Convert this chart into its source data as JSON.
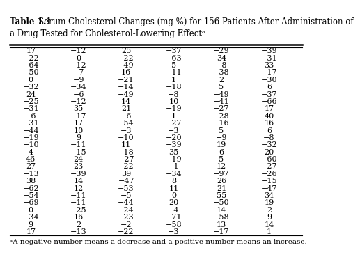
{
  "title_bold": "Table 1.1",
  "title_line1": "  Serum Cholesterol Changes (mg %) for 156 Patients After Administration of",
  "title_line2": "a Drug Tested for Cholesterol-Lowering Effectᵃ",
  "footnote": "ᵃA negative number means a decrease and a positive number means an increase.",
  "columns": 6,
  "rows": [
    [
      17,
      -12,
      25,
      -37,
      -29,
      -39
    ],
    [
      -22,
      0,
      -22,
      -63,
      34,
      -31
    ],
    [
      -64,
      -12,
      -49,
      5,
      -8,
      33
    ],
    [
      -50,
      -7,
      16,
      -11,
      -38,
      -17
    ],
    [
      0,
      -9,
      -21,
      1,
      2,
      -30
    ],
    [
      -32,
      -34,
      -14,
      -18,
      5,
      6
    ],
    [
      24,
      -6,
      -49,
      -8,
      -49,
      -37
    ],
    [
      -25,
      -12,
      14,
      10,
      -41,
      -66
    ],
    [
      -31,
      35,
      21,
      -19,
      -27,
      17
    ],
    [
      -6,
      -17,
      -6,
      1,
      -28,
      40
    ],
    [
      -31,
      17,
      -54,
      -27,
      -16,
      16
    ],
    [
      -44,
      10,
      -3,
      -3,
      5,
      6
    ],
    [
      -19,
      9,
      -10,
      -20,
      -9,
      -8
    ],
    [
      -10,
      -11,
      11,
      -39,
      19,
      -32
    ],
    [
      4,
      -15,
      -18,
      35,
      6,
      20
    ],
    [
      46,
      24,
      -27,
      -19,
      5,
      -60
    ],
    [
      27,
      23,
      -22,
      -1,
      12,
      -27
    ],
    [
      -13,
      -39,
      39,
      -34,
      -97,
      -26
    ],
    [
      38,
      14,
      -47,
      8,
      26,
      -15
    ],
    [
      -62,
      12,
      -53,
      11,
      21,
      -47
    ],
    [
      -54,
      -11,
      -5,
      0,
      55,
      34
    ],
    [
      -69,
      -11,
      -44,
      20,
      -50,
      19
    ],
    [
      0,
      -25,
      -24,
      -4,
      14,
      2
    ],
    [
      -34,
      16,
      -23,
      -71,
      -58,
      9
    ],
    [
      9,
      2,
      -2,
      -58,
      13,
      14
    ],
    [
      17,
      -13,
      -22,
      -3,
      -17,
      1
    ]
  ]
}
